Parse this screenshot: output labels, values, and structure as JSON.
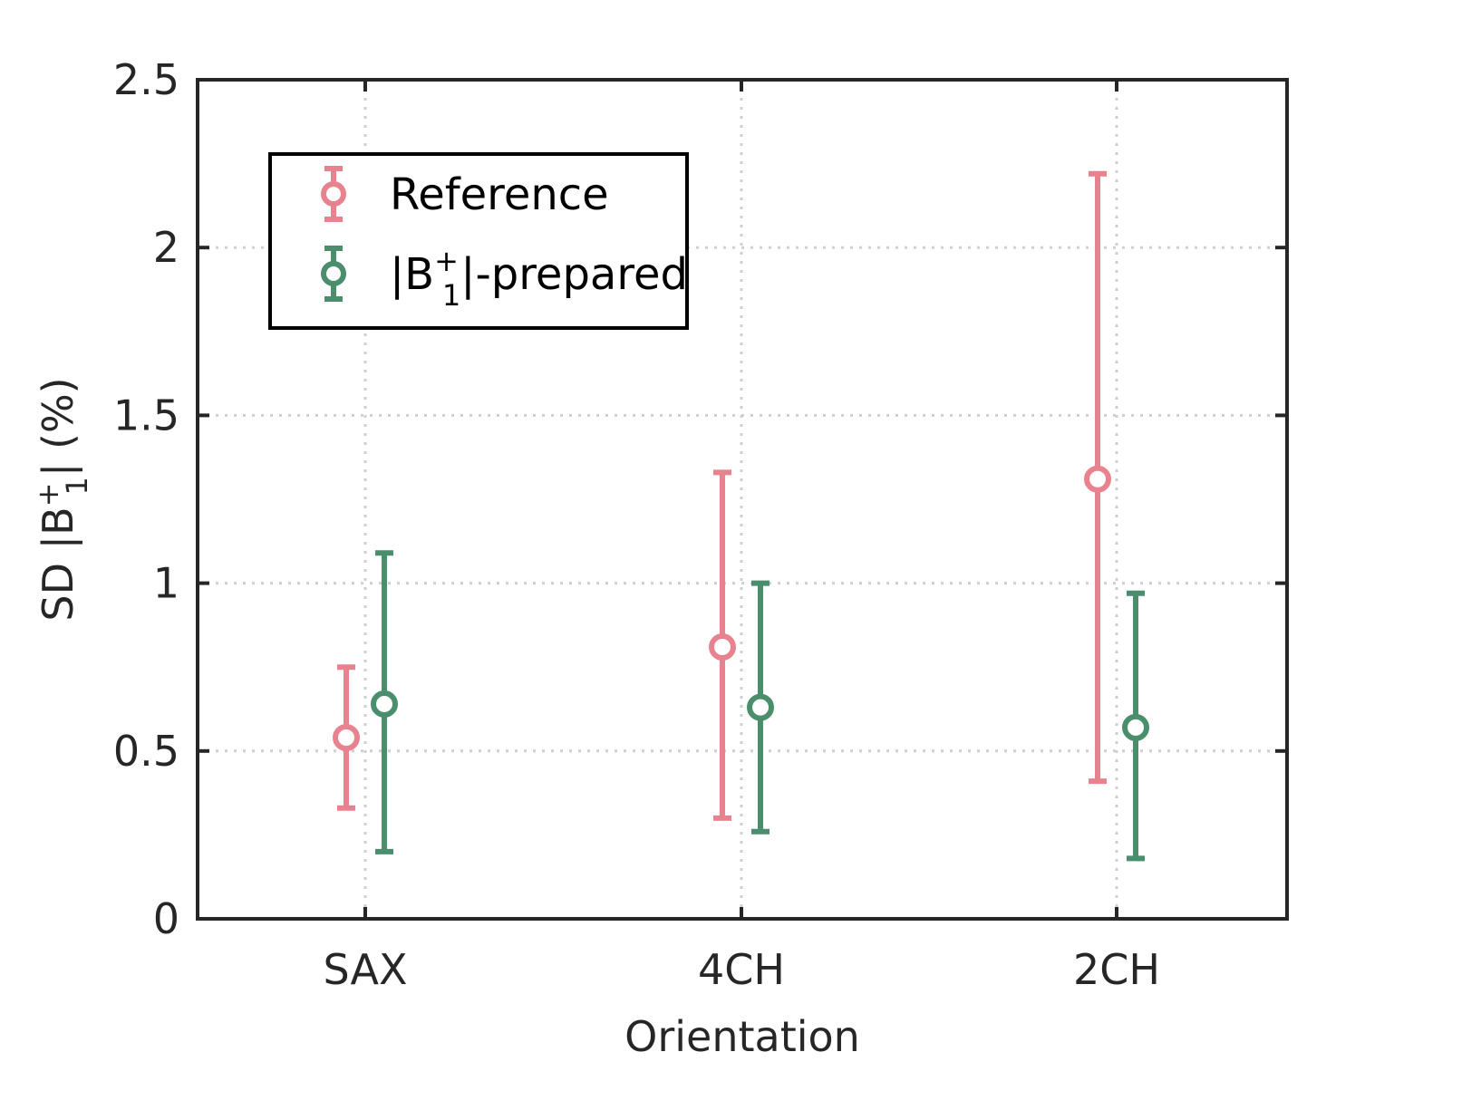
{
  "chart_data": {
    "type": "scatter",
    "errorbars": true,
    "categories": [
      "SAX",
      "4CH",
      "2CH"
    ],
    "xlabel": "Orientation",
    "ylabel": {
      "prefix": "SD |B",
      "sup": "+",
      "sub": "1",
      "suffix": "| (%)"
    },
    "ylim": [
      0,
      2.5
    ],
    "yticks": [
      0,
      0.5,
      1,
      1.5,
      2,
      2.5
    ],
    "ytick_labels": [
      "0",
      "0.5",
      "1",
      "1.5",
      "2",
      "2.5"
    ],
    "grid": true,
    "legend_position": "top-left",
    "series": [
      {
        "name": "Reference",
        "legend": {
          "text": "Reference"
        },
        "color": "#E8828F",
        "values": [
          0.54,
          0.81,
          1.31
        ],
        "lower": [
          0.33,
          0.3,
          0.41
        ],
        "upper": [
          0.75,
          1.33,
          2.22
        ]
      },
      {
        "name": "|B1+|-prepared",
        "legend": {
          "prefix": "|B",
          "sup": "+",
          "sub": "1",
          "suffix": "|-prepared"
        },
        "color": "#4A8E6C",
        "values": [
          0.64,
          0.63,
          0.57
        ],
        "lower": [
          0.2,
          0.26,
          0.18
        ],
        "upper": [
          1.09,
          1.0,
          0.97
        ]
      }
    ]
  }
}
